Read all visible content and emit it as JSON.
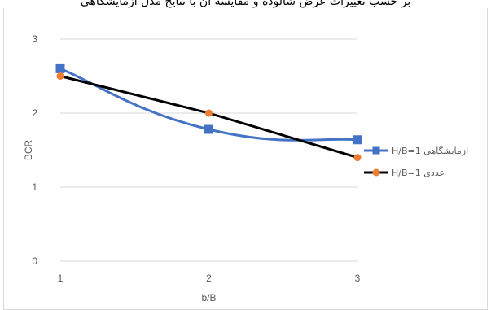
{
  "caption": "بر حسب تغییرات عرض شالوده و مقایسه آن با نتایج مدل آزمایشگاهی",
  "chart_data": {
    "type": "line",
    "x": [
      1,
      2,
      3
    ],
    "xlabel": "b/B",
    "ylabel": "BCR",
    "xlim": [
      1,
      3
    ],
    "ylim": [
      0,
      3
    ],
    "xticks": [
      "1",
      "2",
      "3"
    ],
    "yticks": [
      "0",
      "1",
      "2",
      "3"
    ],
    "grid": "horizontal",
    "legend_position": "right",
    "series": [
      {
        "name": "H/B=1 آزمایشگاهی",
        "values": [
          2.6,
          1.78,
          1.64
        ],
        "color": "#4472c4",
        "marker": "square",
        "smooth": true
      },
      {
        "name": "H/B=1 عددی",
        "values": [
          2.5,
          2.0,
          1.4
        ],
        "color": "#000000",
        "marker_color": "#ed7d31",
        "marker": "circle",
        "smooth": false
      }
    ]
  }
}
